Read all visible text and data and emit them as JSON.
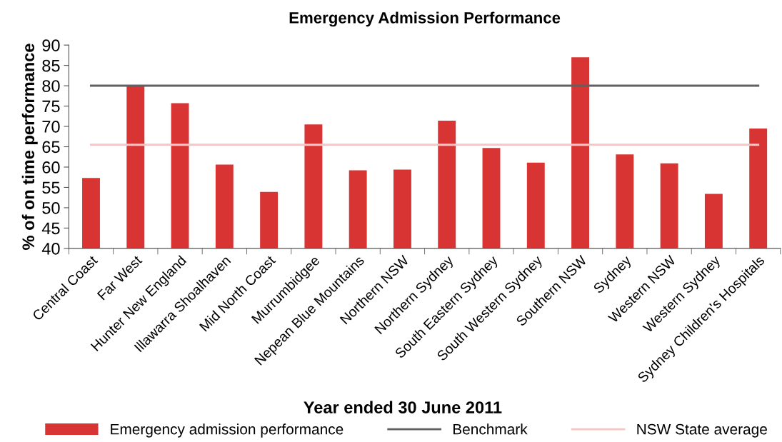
{
  "chart_data": {
    "type": "bar",
    "title": "Emergency Admission Performance",
    "xlabel": "Year ended 30 June 2011",
    "ylabel": "% of on time performance",
    "categories": [
      "Central Coast",
      "Far West",
      "Hunter New England",
      "Illawarra Shoalhaven",
      "Mid North Coast",
      "Murrumbidgee",
      "Nepean Blue Mountains",
      "Northern NSW",
      "Northern Sydney",
      "South Eastern Sydney",
      "South Western Sydney",
      "Southern NSW",
      "Sydney",
      "Western NSW",
      "Western Sydney",
      "Sydney Children's Hospitals"
    ],
    "series": [
      {
        "name": "Emergency admission performance",
        "color": "#d83434",
        "values": [
          57.3,
          80.0,
          75.7,
          60.6,
          53.9,
          70.5,
          59.2,
          59.4,
          71.4,
          64.7,
          61.1,
          87.0,
          63.1,
          60.9,
          53.4,
          69.5
        ]
      }
    ],
    "ref_lines": [
      {
        "axis": "y",
        "value": 80,
        "label": "Benchmark",
        "color": "#606060"
      },
      {
        "axis": "y",
        "value": 65.5,
        "label": "NSW State average",
        "color": "#f5c6c6"
      }
    ],
    "ylim": [
      40,
      90
    ],
    "yticks": [
      40,
      45,
      50,
      55,
      60,
      65,
      70,
      75,
      80,
      85,
      90
    ],
    "grid": false,
    "legend": "bottom"
  }
}
